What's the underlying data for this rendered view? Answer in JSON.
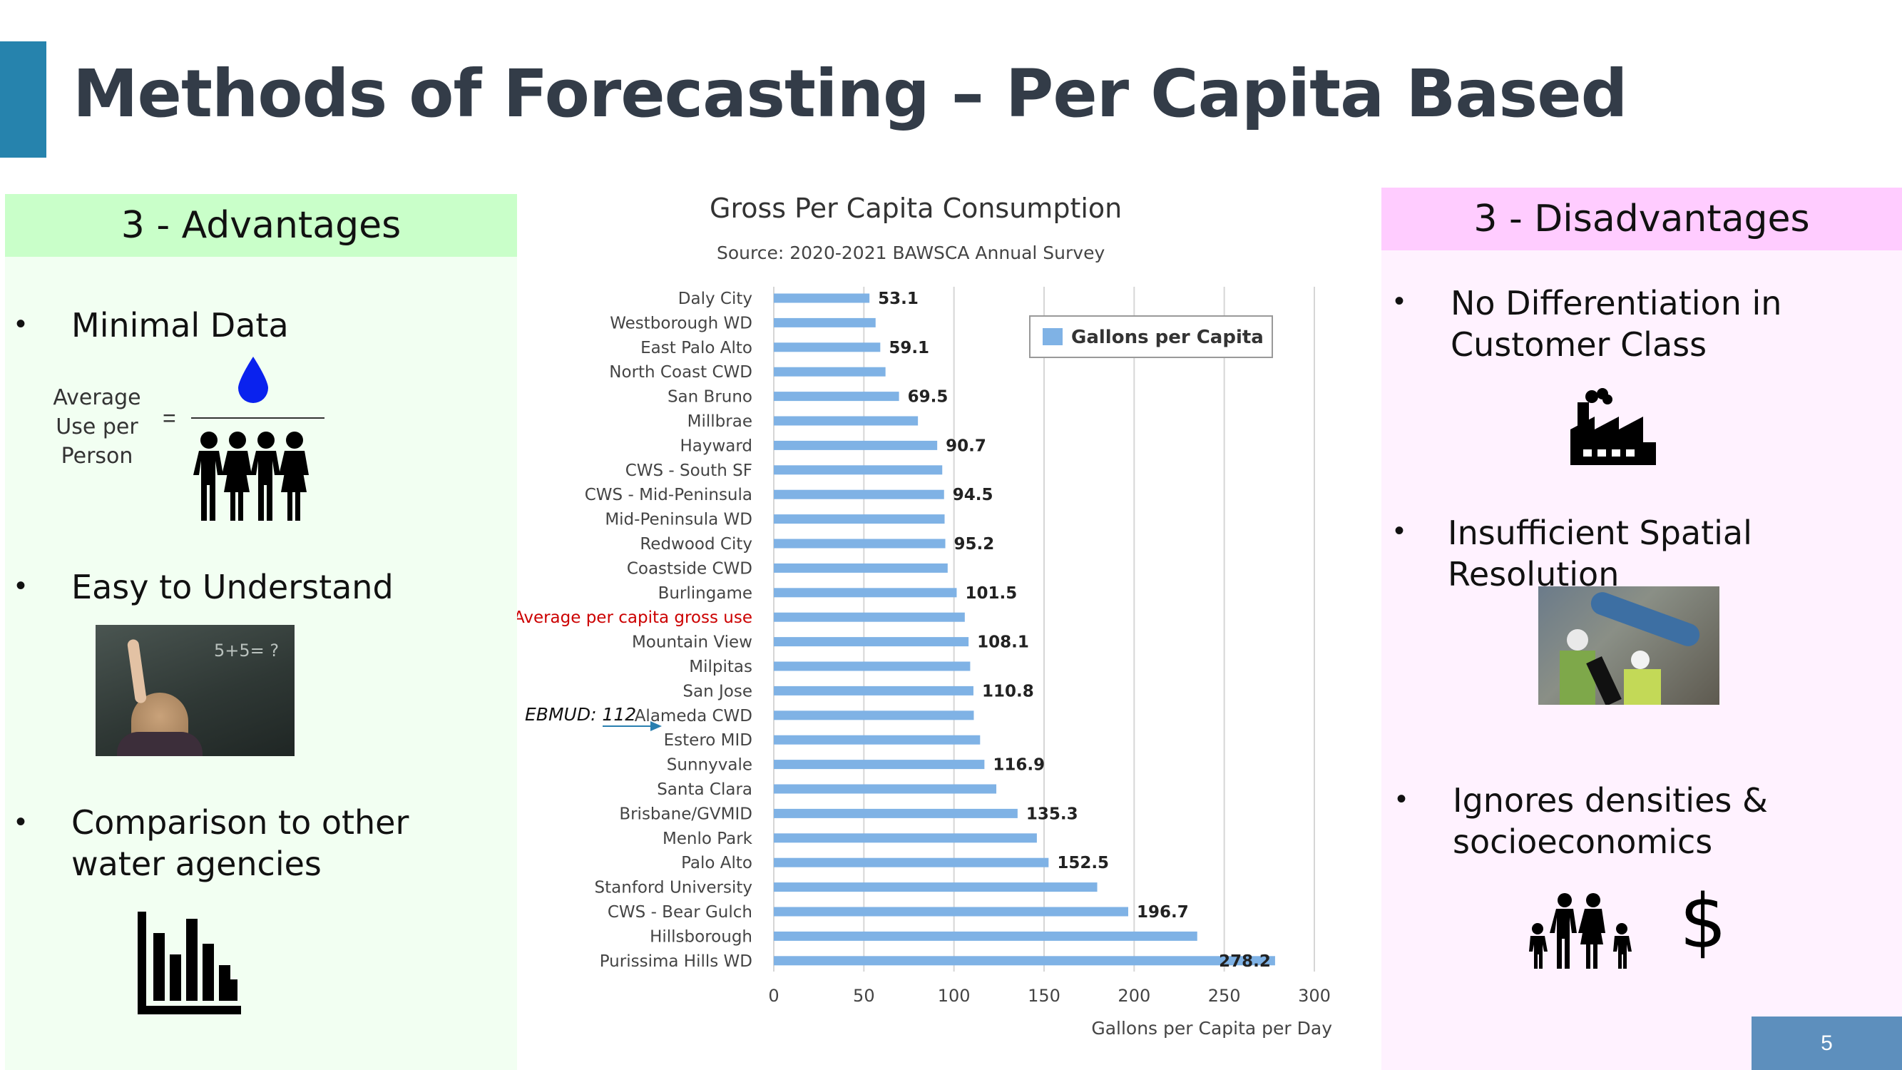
{
  "slide": {
    "title": "Methods of Forecasting – Per Capita Based",
    "page_number": "5",
    "accent_color": "#2683ad"
  },
  "advantages": {
    "heading": "3 - Advantages",
    "items": [
      {
        "label": "Minimal Data"
      },
      {
        "label": "Easy to Understand"
      },
      {
        "label": "Comparison to other water agencies"
      }
    ],
    "formula": {
      "left_text": "Average Use per Person",
      "equals": "=",
      "numerator_icon": "water-drop-icon",
      "denominator_icon": "people-group-icon"
    },
    "board_text": "5+5= ?",
    "chart_icon": "bar-chart-icon"
  },
  "disadvantages": {
    "heading": "3 - Disadvantages",
    "items": [
      {
        "label": "No Differentiation in Customer Class"
      },
      {
        "label": "Insufficient Spatial Resolution"
      },
      {
        "label": "Ignores densities & socioeconomics"
      }
    ],
    "icons": [
      "factory-icon",
      "construction-photo",
      "family-icon",
      "dollar-icon"
    ],
    "dollar_symbol": "$"
  },
  "chart_data": {
    "type": "bar",
    "orientation": "horizontal",
    "title": "Gross Per Capita Consumption",
    "subtitle": "Source: 2020-2021 BAWSCA Annual Survey",
    "xlabel": "Gallons per Capita per Day",
    "xlim": [
      0,
      300
    ],
    "xticks": [
      0,
      50,
      100,
      150,
      200,
      250,
      300
    ],
    "legend": {
      "label": "Gallons per Capita",
      "placement": "top-right"
    },
    "bar_color": "#7fb2e5",
    "categories": [
      "Daly City",
      "Westborough WD",
      "East Palo Alto",
      "North Coast CWD",
      "San Bruno",
      "Millbrae",
      "Hayward",
      "CWS - South SF",
      "CWS - Mid-Peninsula",
      "Mid-Peninsula WD",
      "Redwood City",
      "Coastside CWD",
      "Burlingame",
      "Average per capita gross use",
      "Mountain View",
      "Milpitas",
      "San Jose",
      "Alameda CWD",
      "Estero MID",
      "Sunnyvale",
      "Santa Clara",
      "Brisbane/GVMID",
      "Menlo Park",
      "Palo Alto",
      "Stanford University",
      "CWS - Bear Gulch",
      "Hillsborough",
      "Purissima Hills WD"
    ],
    "values": [
      53.1,
      56.5,
      59.1,
      62.0,
      69.5,
      80.0,
      90.7,
      93.5,
      94.5,
      94.8,
      95.2,
      96.5,
      101.5,
      106.0,
      108.1,
      109.0,
      110.8,
      111.0,
      114.5,
      116.9,
      123.5,
      135.3,
      146.0,
      152.5,
      179.5,
      196.7,
      235.0,
      278.2
    ],
    "data_labels": [
      "53.1",
      "",
      "59.1",
      "",
      "69.5",
      "",
      "90.7",
      "",
      "94.5",
      "",
      "95.2",
      "",
      "101.5",
      "",
      "108.1",
      "",
      "110.8",
      "",
      "",
      "116.9",
      "",
      "135.3",
      "",
      "152.5",
      "",
      "196.7",
      "",
      "278.2"
    ],
    "highlight_category": "Average per capita gross use",
    "highlight_color": "#cc0000",
    "annotation": {
      "text": "EBMUD: 112",
      "points_to": "Estero MID"
    }
  }
}
